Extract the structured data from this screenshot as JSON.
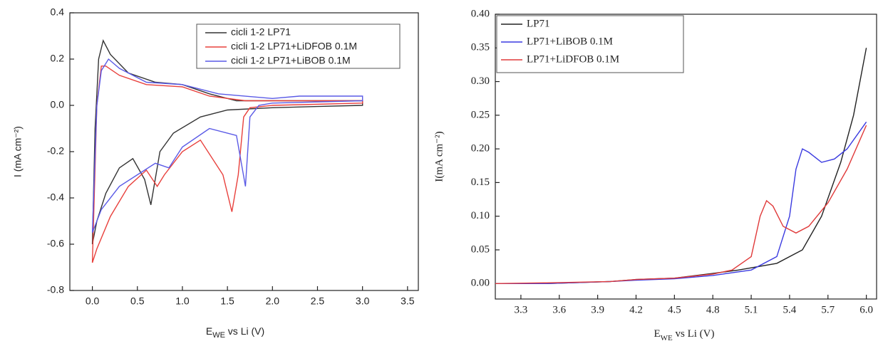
{
  "chart_data": [
    {
      "type": "line",
      "xlabel": [
        "E",
        "WE",
        " vs Li (V)"
      ],
      "ylabel": "I (mA cm⁻²)",
      "xlim": [
        -0.25,
        3.62
      ],
      "ylim": [
        -0.8,
        0.4
      ],
      "xticks": [
        {
          "value": 0,
          "label": "0.0"
        },
        0.5,
        {
          "value": 1,
          "label": "1.0"
        },
        1.5,
        {
          "value": 2,
          "label": "2.0"
        },
        2.5,
        {
          "value": 3,
          "label": "3.0"
        },
        3.5
      ],
      "yticks": [
        -0.8,
        -0.6,
        -0.4,
        -0.2,
        {
          "value": 0,
          "label": "0.0"
        },
        0.2,
        0.4
      ],
      "grid": false,
      "legend": "upper right",
      "series": [
        {
          "name": "cicli 1-2 LP71",
          "color": "#333333",
          "x": [
            0,
            0.03,
            0.07,
            0.12,
            0.2,
            0.4,
            0.7,
            1.0,
            1.3,
            1.6,
            2.0,
            2.5,
            3.0,
            3.0,
            2.5,
            2.0,
            1.5,
            1.2,
            0.9,
            0.75,
            0.65,
            0.58,
            0.45,
            0.3,
            0.15,
            0.05,
            0
          ],
          "values": [
            -0.6,
            -0.1,
            0.2,
            0.28,
            0.22,
            0.14,
            0.1,
            0.09,
            0.05,
            0.02,
            0.02,
            0.02,
            0.02,
            0,
            -0.005,
            -0.01,
            -0.02,
            -0.05,
            -0.12,
            -0.2,
            -0.43,
            -0.32,
            -0.23,
            -0.27,
            -0.38,
            -0.5,
            -0.6
          ]
        },
        {
          "name": "cicli 1-2 LP71+LiDFOB 0.1M",
          "color": "#e8403c",
          "x": [
            0,
            0.05,
            0.1,
            0.15,
            0.3,
            0.6,
            1.0,
            1.3,
            1.7,
            2.0,
            3.0,
            3.0,
            2.0,
            1.75,
            1.68,
            1.62,
            1.55,
            1.45,
            1.2,
            1.0,
            0.8,
            0.72,
            0.6,
            0.4,
            0.2,
            0.05,
            0
          ],
          "values": [
            -0.68,
            0,
            0.17,
            0.17,
            0.13,
            0.09,
            0.08,
            0.04,
            0.02,
            0.02,
            0.02,
            0.01,
            0,
            -0.01,
            -0.05,
            -0.3,
            -0.46,
            -0.3,
            -0.15,
            -0.2,
            -0.3,
            -0.35,
            -0.28,
            -0.35,
            -0.48,
            -0.62,
            -0.68
          ]
        },
        {
          "name": "cicli 1-2 LP71+LiBOB 0.1M",
          "color": "#5a5ae6",
          "x": [
            0,
            0.05,
            0.1,
            0.18,
            0.3,
            0.6,
            1.0,
            1.4,
            2.0,
            2.3,
            3.0,
            3.0,
            2.0,
            1.85,
            1.75,
            1.7,
            1.6,
            1.3,
            1.0,
            0.85,
            0.7,
            0.5,
            0.3,
            0.1,
            0
          ],
          "values": [
            -0.55,
            0,
            0.15,
            0.2,
            0.16,
            0.1,
            0.09,
            0.05,
            0.03,
            0.04,
            0.04,
            0.02,
            0.01,
            0,
            -0.05,
            -0.35,
            -0.13,
            -0.1,
            -0.18,
            -0.27,
            -0.25,
            -0.3,
            -0.35,
            -0.45,
            -0.55
          ]
        }
      ]
    },
    {
      "type": "line",
      "xlabel": [
        "E",
        "WE",
        " vs Li (V)"
      ],
      "ylabel": "I(mA cm⁻²)",
      "xlim": [
        3.1,
        6.08
      ],
      "ylim": [
        -0.023,
        0.4
      ],
      "xticks": [
        3.3,
        3.6,
        3.9,
        4.2,
        4.5,
        4.8,
        5.1,
        5.4,
        5.7,
        {
          "value": 6,
          "label": "6.0"
        }
      ],
      "yticks": [
        {
          "value": 0,
          "label": "0.00"
        },
        0.05,
        {
          "value": 0.1,
          "label": "0.10"
        },
        0.15,
        {
          "value": 0.2,
          "label": "0.20"
        },
        0.25,
        {
          "value": 0.3,
          "label": "0.30"
        },
        0.35,
        {
          "value": 0.4,
          "label": "0.40"
        }
      ],
      "grid": false,
      "legend": "upper left",
      "series": [
        {
          "name": "LP71",
          "color": "#222222",
          "x": [
            3.1,
            3.5,
            4.0,
            4.2,
            4.5,
            4.8,
            5.0,
            5.3,
            5.5,
            5.65,
            5.8,
            5.9,
            6.0
          ],
          "values": [
            0,
            0,
            0.003,
            0.006,
            0.008,
            0.015,
            0.02,
            0.03,
            0.05,
            0.1,
            0.18,
            0.25,
            0.35
          ]
        },
        {
          "name": "LP71+LiBOB 0.1M",
          "color": "#3a3ae0",
          "x": [
            3.1,
            3.5,
            4.0,
            4.2,
            4.5,
            4.8,
            5.1,
            5.3,
            5.4,
            5.45,
            5.5,
            5.55,
            5.65,
            5.75,
            5.85,
            6.0
          ],
          "values": [
            0,
            0,
            0.003,
            0.005,
            0.007,
            0.012,
            0.02,
            0.04,
            0.1,
            0.17,
            0.2,
            0.195,
            0.18,
            0.185,
            0.2,
            0.24
          ]
        },
        {
          "name": "LP71+LiDFOB 0.1M",
          "color": "#e03a3a",
          "x": [
            3.1,
            3.5,
            4.0,
            4.2,
            4.5,
            4.8,
            4.95,
            5.1,
            5.17,
            5.22,
            5.27,
            5.35,
            5.45,
            5.55,
            5.7,
            5.85,
            6.0
          ],
          "values": [
            0,
            0.001,
            0.003,
            0.006,
            0.008,
            0.014,
            0.02,
            0.04,
            0.1,
            0.123,
            0.115,
            0.085,
            0.075,
            0.085,
            0.12,
            0.17,
            0.235
          ]
        }
      ]
    }
  ]
}
